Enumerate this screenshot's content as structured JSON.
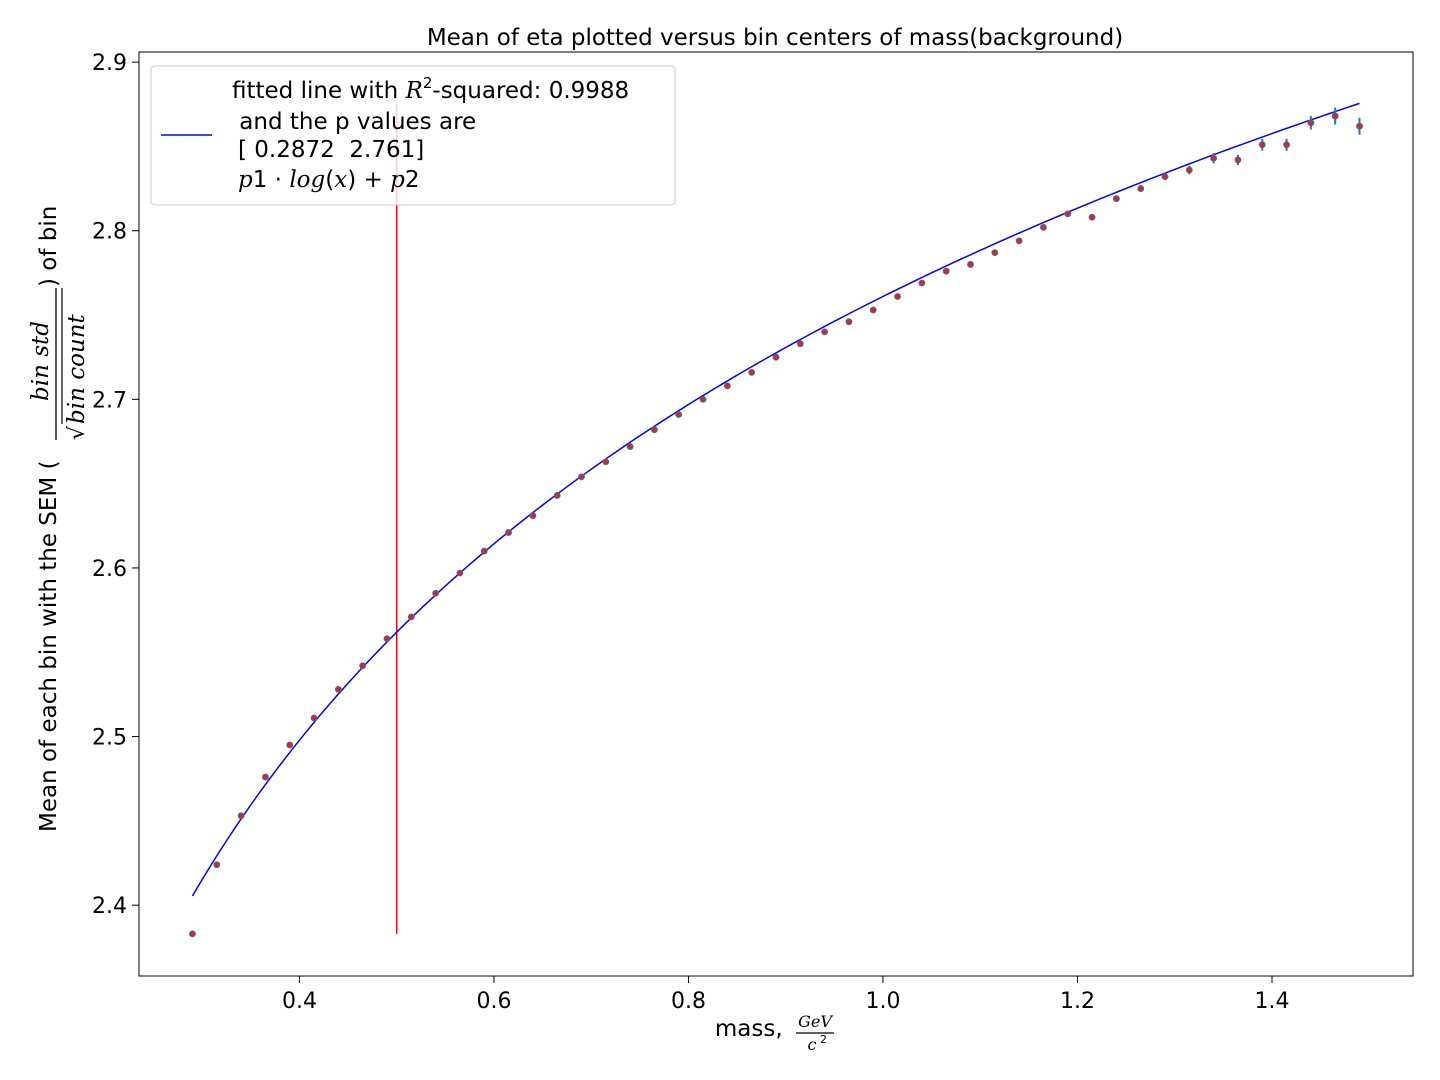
{
  "chart_data": {
    "type": "scatter",
    "title": "Mean of eta plotted versus bin centers of mass(background)",
    "xlabel": {
      "prefix": "mass, ",
      "frac_num": "GeV",
      "frac_den": "c",
      "frac_den_sup": "2"
    },
    "ylabel": {
      "prefix": "Mean of each bin with the SEM (",
      "frac_num": "bin std",
      "frac_den_sqrt": "√",
      "frac_den": "bin count",
      "suffix": ") of bin"
    },
    "xlim": [
      0.235,
      1.545
    ],
    "ylim": [
      2.358,
      2.906
    ],
    "xticks": [
      "0.4",
      "0.6",
      "0.8",
      "1.0",
      "1.2",
      "1.4"
    ],
    "xtick_values": [
      0.4,
      0.6,
      0.8,
      1.0,
      1.2,
      1.4
    ],
    "yticks": [
      "2.4",
      "2.5",
      "2.6",
      "2.7",
      "2.8",
      "2.9"
    ],
    "ytick_values": [
      2.4,
      2.5,
      2.6,
      2.7,
      2.8,
      2.9
    ],
    "grid": false,
    "legend_placement": "upper-left",
    "legend": {
      "line1_prefix": "fitted line with ",
      "line1_R": "R",
      "line1_sup": "2",
      "line1_suffix": "-squared: 0.9988",
      "line2": " and the p values are",
      "line3": "[ 0.2872  2.761]",
      "line4_a": "p",
      "line4_b": "1 · ",
      "line4_c": "log",
      "line4_d": "(",
      "line4_e": "x",
      "line4_f": ") + ",
      "line4_g": "p",
      "line4_h": "2"
    },
    "fit": {
      "p1": 0.2872,
      "p2": 2.761,
      "x_range": [
        0.29,
        1.49
      ],
      "color": "#0000ff"
    },
    "vline": {
      "x": 0.5,
      "y_range": [
        2.383,
        2.875
      ],
      "color": "#ff0000"
    },
    "points": {
      "marker_color": "#d62728",
      "edge_color": "#1f77b4",
      "errorbar_color": "#1f77b4",
      "x": [
        0.29,
        0.315,
        0.34,
        0.365,
        0.39,
        0.415,
        0.44,
        0.465,
        0.49,
        0.515,
        0.54,
        0.565,
        0.59,
        0.615,
        0.64,
        0.665,
        0.69,
        0.715,
        0.74,
        0.765,
        0.79,
        0.815,
        0.84,
        0.865,
        0.89,
        0.915,
        0.94,
        0.965,
        0.99,
        1.015,
        1.04,
        1.065,
        1.09,
        1.115,
        1.14,
        1.165,
        1.19,
        1.215,
        1.24,
        1.265,
        1.29,
        1.315,
        1.34,
        1.365,
        1.39,
        1.415,
        1.44,
        1.465,
        1.49
      ],
      "y": [
        2.383,
        2.424,
        2.453,
        2.476,
        2.495,
        2.511,
        2.528,
        2.542,
        2.558,
        2.571,
        2.585,
        2.597,
        2.61,
        2.621,
        2.631,
        2.643,
        2.654,
        2.663,
        2.672,
        2.682,
        2.691,
        2.7,
        2.708,
        2.716,
        2.725,
        2.733,
        2.74,
        2.746,
        2.753,
        2.761,
        2.769,
        2.776,
        2.78,
        2.787,
        2.794,
        2.802,
        2.81,
        2.808,
        2.819,
        2.825,
        2.832,
        2.836,
        2.843,
        2.842,
        2.851,
        2.851,
        2.864,
        2.868,
        2.862
      ],
      "yerr": [
        0.001,
        0.001,
        0.001,
        0.001,
        0.001,
        0.001,
        0.001,
        0.001,
        0.001,
        0.001,
        0.001,
        0.001,
        0.001,
        0.001,
        0.001,
        0.001,
        0.001,
        0.001,
        0.001,
        0.001,
        0.001,
        0.001,
        0.001,
        0.001,
        0.001,
        0.001,
        0.001,
        0.001,
        0.001,
        0.001,
        0.001,
        0.001,
        0.001,
        0.001,
        0.001,
        0.0015,
        0.0015,
        0.0015,
        0.002,
        0.002,
        0.002,
        0.0025,
        0.003,
        0.003,
        0.0035,
        0.0035,
        0.004,
        0.005,
        0.005
      ]
    }
  }
}
